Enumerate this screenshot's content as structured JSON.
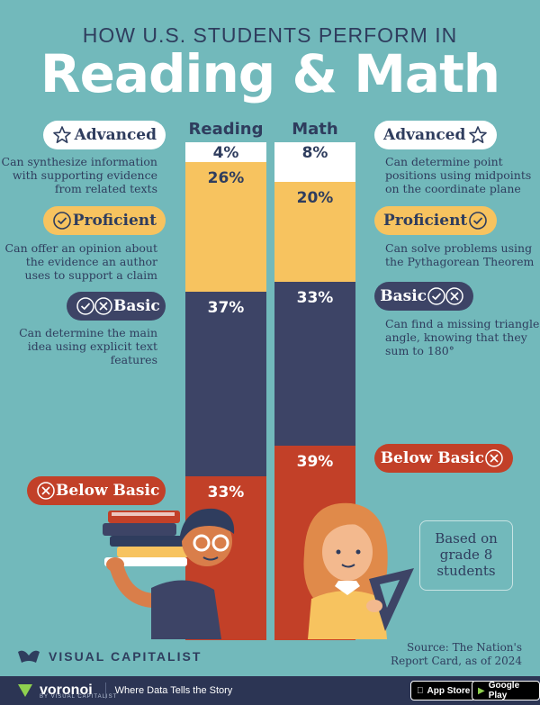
{
  "title": {
    "line1": "HOW U.S. STUDENTS PERFORM IN",
    "line2": "Reading & Math"
  },
  "columns": {
    "reading": "Reading",
    "math": "Math"
  },
  "chart_data": {
    "type": "bar",
    "stacked": true,
    "normalized_percent": true,
    "categories": [
      "Reading",
      "Math"
    ],
    "series": [
      {
        "name": "Advanced",
        "values": [
          4,
          8
        ],
        "color": "#ffffff"
      },
      {
        "name": "Proficient",
        "values": [
          26,
          20
        ],
        "color": "#f7c35f"
      },
      {
        "name": "Basic",
        "values": [
          37,
          33
        ],
        "color": "#3d4466"
      },
      {
        "name": "Below Basic",
        "values": [
          33,
          39
        ],
        "color": "#c24028"
      }
    ],
    "value_labels": {
      "reading": [
        "4%",
        "26%",
        "37%",
        "33%"
      ],
      "math": [
        "8%",
        "20%",
        "33%",
        "39%"
      ]
    }
  },
  "levels": {
    "advanced": "Advanced",
    "proficient": "Proficient",
    "basic": "Basic",
    "below_basic": "Below Basic"
  },
  "reading_desc": {
    "advanced": "Can synthesize information with supporting evidence from related texts",
    "proficient": "Can offer an opinion about the evidence an author uses to support a claim",
    "basic": "Can determine the main idea using explicit text features"
  },
  "math_desc": {
    "advanced": "Can determine point positions using midpoints on the coordinate plane",
    "proficient": "Can solve problems using the Pythagorean Theorem",
    "basic": "Can find a missing triangle angle, knowing that they sum to 180°"
  },
  "note": "Based on grade 8 students",
  "source": {
    "line1": "Source: The Nation's",
    "line2": "Report Card, as of 2024"
  },
  "branding": {
    "logo": "VISUAL CAPITALIST",
    "footer_brand": "voronoi",
    "footer_brand_sub": "BY VISUAL CAPITALIST",
    "tagline": "Where Data Tells the Story",
    "app_store": "App Store",
    "google_play": "Google Play"
  },
  "icons": [
    "star-icon",
    "check-circle-icon",
    "check-x-icon",
    "x-circle-icon"
  ]
}
